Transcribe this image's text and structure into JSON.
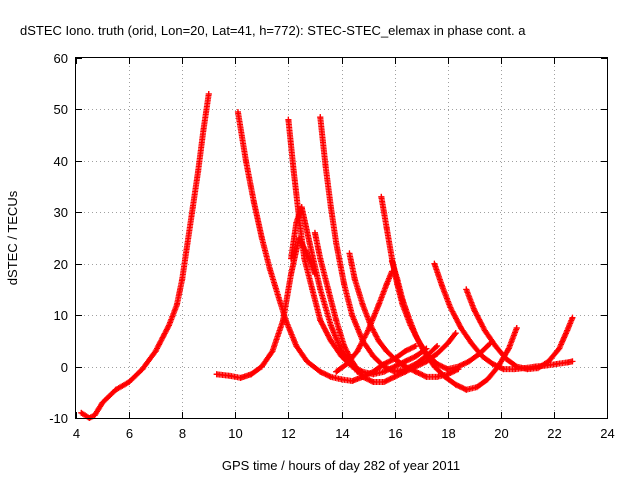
{
  "chart_data": {
    "type": "scatter",
    "title": "dSTEC Iono. truth (orid, Lon=20, Lat=41, h=772): STEC-STEC_elemax in phase cont. a",
    "xlabel": "GPS time / hours of day 282 of year 2011",
    "ylabel": "dSTEC  / TECUs",
    "xlim": [
      4,
      24
    ],
    "ylim": [
      -10,
      60
    ],
    "xticks": [
      4,
      6,
      8,
      10,
      12,
      14,
      16,
      18,
      20,
      22,
      24
    ],
    "yticks": [
      -10,
      0,
      10,
      20,
      30,
      40,
      50,
      60
    ],
    "grid": true,
    "marker": "plus",
    "color": "#ff0000",
    "series": [
      {
        "x": [
          4.2,
          4.5,
          4.7,
          5.0,
          5.5,
          6.0,
          6.5,
          7.0,
          7.5,
          7.8,
          8.0,
          8.2,
          8.4,
          8.6,
          8.8,
          9.0
        ],
        "y": [
          -9,
          -10,
          -9.5,
          -7,
          -4.5,
          -3,
          -0.5,
          3,
          8,
          12,
          17,
          24,
          31,
          38,
          46,
          53
        ]
      },
      {
        "x": [
          9.3,
          9.8,
          10.2,
          10.6,
          11.0,
          11.4,
          11.8,
          12.1,
          12.4,
          12.7,
          13.0
        ],
        "y": [
          -1.5,
          -1.8,
          -2.2,
          -1.5,
          0,
          3,
          9,
          18,
          25,
          22,
          18
        ]
      },
      {
        "x": [
          10.1,
          10.4,
          10.7,
          11.0,
          11.3,
          11.6,
          11.9,
          12.3,
          12.7,
          13.2,
          13.6,
          14.0,
          14.4,
          14.8,
          15.2,
          15.6,
          16.0,
          16.4,
          16.8
        ],
        "y": [
          49.5,
          40,
          32,
          25,
          19,
          14,
          9,
          4,
          1,
          -1,
          -2,
          -2.5,
          -2.8,
          -2,
          -1,
          0.5,
          1.5,
          3,
          4
        ]
      },
      {
        "x": [
          12.0,
          12.2,
          12.4,
          12.6,
          12.9,
          13.2,
          13.6,
          14.0,
          14.4,
          14.8,
          15.2,
          15.6,
          16.0,
          16.4,
          16.8,
          17.2
        ],
        "y": [
          48,
          38,
          29,
          21,
          15,
          9,
          5,
          2,
          0,
          -1,
          -1.5,
          -1,
          0,
          1,
          2,
          3.5
        ]
      },
      {
        "x": [
          13.2,
          13.4,
          13.6,
          13.8,
          14.1,
          14.4,
          14.8,
          15.2,
          15.6,
          16.0,
          16.4,
          16.8,
          17.3,
          17.6
        ],
        "y": [
          48.5,
          39,
          31,
          24,
          16,
          10,
          5,
          2,
          0,
          -1,
          -0.5,
          0.5,
          2.5,
          4
        ]
      },
      {
        "x": [
          12.1,
          12.3,
          12.5,
          12.8,
          13.2,
          13.6,
          14.0,
          14.3,
          14.6
        ],
        "y": [
          21,
          28,
          31,
          24,
          15,
          8,
          3,
          1,
          -1
        ]
      },
      {
        "x": [
          13.0,
          13.2,
          13.5,
          13.8,
          14.1,
          14.4,
          14.8,
          15.2,
          15.6,
          16.0,
          16.4,
          16.8,
          17.2,
          17.6,
          18.0,
          18.3
        ],
        "y": [
          26,
          21,
          15,
          9,
          4,
          1,
          -2,
          -3,
          -3,
          -2,
          -1,
          0,
          1,
          2.5,
          4.5,
          6.5
        ]
      },
      {
        "x": [
          14.3,
          14.5,
          14.8,
          15.1,
          15.4,
          15.7,
          16.0,
          16.4,
          16.8,
          17.2,
          17.6,
          18.0,
          18.4
        ],
        "y": [
          22,
          17,
          12,
          8,
          5,
          3,
          1.5,
          0,
          -1,
          -2,
          -2,
          -1.5,
          -0.5
        ]
      },
      {
        "x": [
          13.8,
          14.2,
          14.6,
          15.0,
          15.4,
          15.7,
          15.9
        ],
        "y": [
          -1,
          0.5,
          3,
          7,
          12,
          16,
          18.5
        ]
      },
      {
        "x": [
          15.5,
          15.7,
          15.9,
          16.1,
          16.3,
          16.6,
          16.9,
          17.2,
          17.6,
          18.0,
          18.4,
          18.8,
          19.2,
          19.6
        ],
        "y": [
          33,
          27,
          21,
          16,
          12,
          8,
          5,
          2.5,
          0.5,
          -0.5,
          0,
          1,
          2.5,
          4.5
        ]
      },
      {
        "x": [
          15.9,
          16.1,
          16.3,
          16.5,
          16.8,
          17.1,
          17.5,
          17.9,
          18.3,
          18.7,
          19.1,
          19.5,
          19.9,
          20.3,
          20.6
        ],
        "y": [
          20.5,
          17,
          13,
          10,
          6,
          3,
          0,
          -2,
          -3.5,
          -4.5,
          -4,
          -2.5,
          0,
          3.5,
          7.5
        ]
      },
      {
        "x": [
          17.5,
          17.8,
          18.1,
          18.5,
          18.9,
          19.3,
          19.7,
          20.1,
          20.5,
          20.9,
          21.3,
          21.7,
          22.1,
          22.5,
          22.7
        ],
        "y": [
          20,
          15.5,
          11.5,
          7.5,
          4.5,
          2,
          0.5,
          -0.5,
          -0.5,
          -0.3,
          0,
          0.2,
          0.5,
          0.8,
          1
        ]
      },
      {
        "x": [
          18.7,
          19.0,
          19.4,
          19.8,
          20.2,
          20.6,
          21.0,
          21.4,
          21.8,
          22.2,
          22.5,
          22.7
        ],
        "y": [
          15,
          11,
          7,
          4,
          1.5,
          0,
          -0.5,
          -0.3,
          1,
          3.5,
          7,
          9.5
        ]
      }
    ]
  }
}
